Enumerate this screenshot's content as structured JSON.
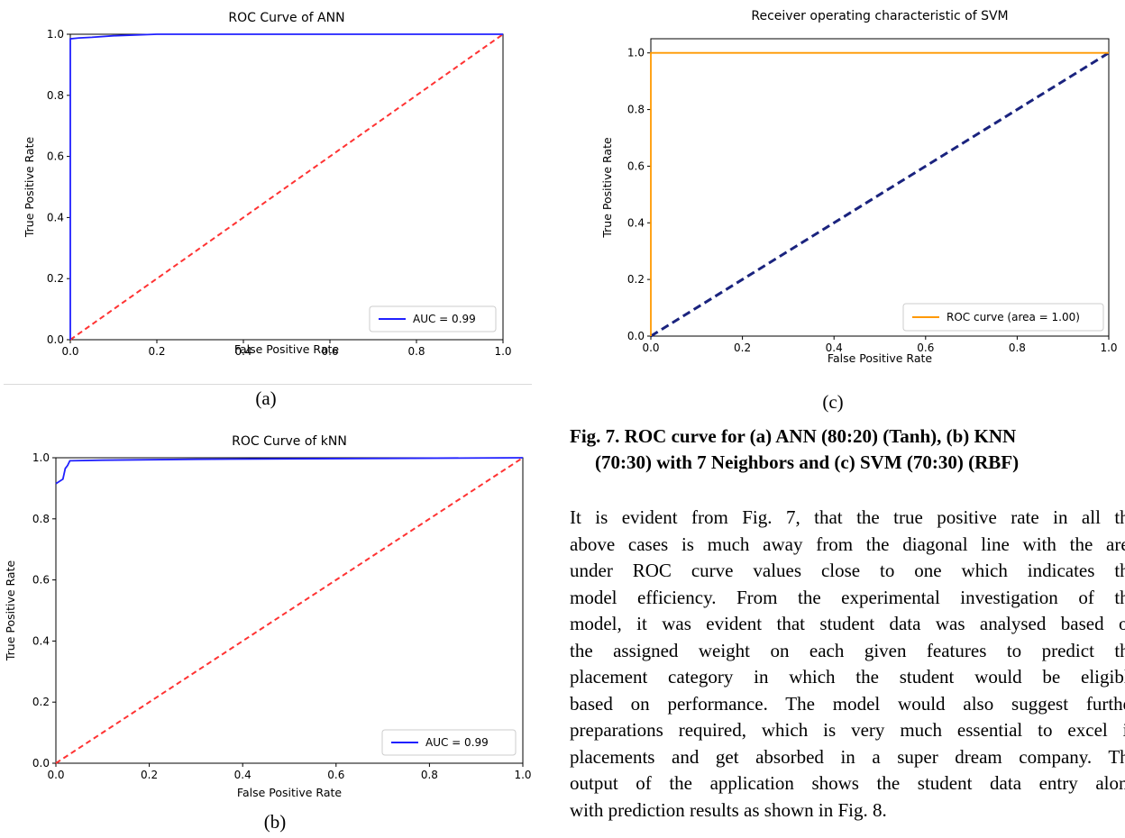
{
  "chart_data": [
    {
      "id": "a",
      "type": "line",
      "title": "ROC Curve of ANN",
      "xlabel": "False Positive Rate",
      "ylabel": "True Positive Rate",
      "xlim": [
        0,
        1
      ],
      "ylim": [
        0,
        1
      ],
      "xticks": [
        "0.0",
        "0.2",
        "0.4",
        "0.6",
        "0.8",
        "1.0"
      ],
      "yticks": [
        "0.0",
        "0.2",
        "0.4",
        "0.6",
        "0.8",
        "1.0"
      ],
      "legend_position": "lower-right",
      "series": [
        {
          "name": "AUC = 0.99",
          "color": "#2020ff",
          "style": "solid",
          "x": [
            0,
            0,
            0.02,
            0.05,
            0.1,
            0.2,
            0.5,
            1.0
          ],
          "y": [
            0,
            0.985,
            0.988,
            0.99,
            0.995,
            1.0,
            1.0,
            1.0
          ]
        },
        {
          "name": "",
          "color": "#ff3333",
          "style": "dashed",
          "x": [
            0,
            1
          ],
          "y": [
            0,
            1
          ]
        }
      ],
      "caption": "(a)"
    },
    {
      "id": "b",
      "type": "line",
      "title": "ROC Curve of kNN",
      "xlabel": "False Positive Rate",
      "ylabel": "True Positive Rate",
      "xlim": [
        0,
        1
      ],
      "ylim": [
        0,
        1
      ],
      "xticks": [
        "0.0",
        "0.2",
        "0.4",
        "0.6",
        "0.8",
        "1.0"
      ],
      "yticks": [
        "0.0",
        "0.2",
        "0.4",
        "0.6",
        "0.8",
        "1.0"
      ],
      "legend_position": "lower-right",
      "series": [
        {
          "name": "AUC = 0.99",
          "color": "#2020ff",
          "style": "solid",
          "x": [
            0,
            0.015,
            0.02,
            0.025,
            0.03,
            0.1,
            0.3,
            1.0
          ],
          "y": [
            0.915,
            0.93,
            0.965,
            0.975,
            0.99,
            0.992,
            0.995,
            1.0
          ]
        },
        {
          "name": "",
          "color": "#ff3333",
          "style": "dashed",
          "x": [
            0,
            1
          ],
          "y": [
            0,
            1
          ]
        }
      ],
      "caption": "(b)"
    },
    {
      "id": "c",
      "type": "line",
      "title": "Receiver operating characteristic of SVM",
      "xlabel": "False Positive Rate",
      "ylabel": "True Positive Rate",
      "xlim": [
        0,
        1
      ],
      "ylim": [
        0,
        1.05
      ],
      "xticks": [
        "0.0",
        "0.2",
        "0.4",
        "0.6",
        "0.8",
        "1.0"
      ],
      "yticks": [
        "0.0",
        "0.2",
        "0.4",
        "0.6",
        "0.8",
        "1.0"
      ],
      "legend_position": "lower-right",
      "series": [
        {
          "name": "ROC curve (area = 1.00)",
          "color": "#ff9900",
          "style": "solid",
          "x": [
            0,
            0,
            1
          ],
          "y": [
            0,
            1.0,
            1.0
          ]
        },
        {
          "name": "",
          "color": "#1a237e",
          "style": "dashed",
          "x": [
            0,
            1
          ],
          "y": [
            0,
            1
          ]
        }
      ],
      "caption": "(c)"
    }
  ],
  "figure_caption": {
    "line1": "Fig. 7.  ROC curve for (a) ANN (80:20) (Tanh), (b) KNN",
    "line2": "(70:30) with 7 Neighbors and (c) SVM (70:30) (RBF)"
  },
  "body_lines": [
    "It is evident from Fig. 7, that the true positive rate in all the",
    "above cases is much away from the diagonal line with the area",
    "under ROC curve values close to one which indicates the",
    "model efficiency. From the experimental investigation of the",
    "model, it was evident that student data was analysed based on",
    "the assigned weight on each given features to predict the",
    "placement category in which the student would be eligible",
    "based on performance. The model would also suggest further",
    "preparations required, which is very much essential to excel in",
    "placements and get absorbed in a super dream company. The",
    "output of the application shows the student data entry along",
    "with prediction results as shown in Fig. 8."
  ]
}
